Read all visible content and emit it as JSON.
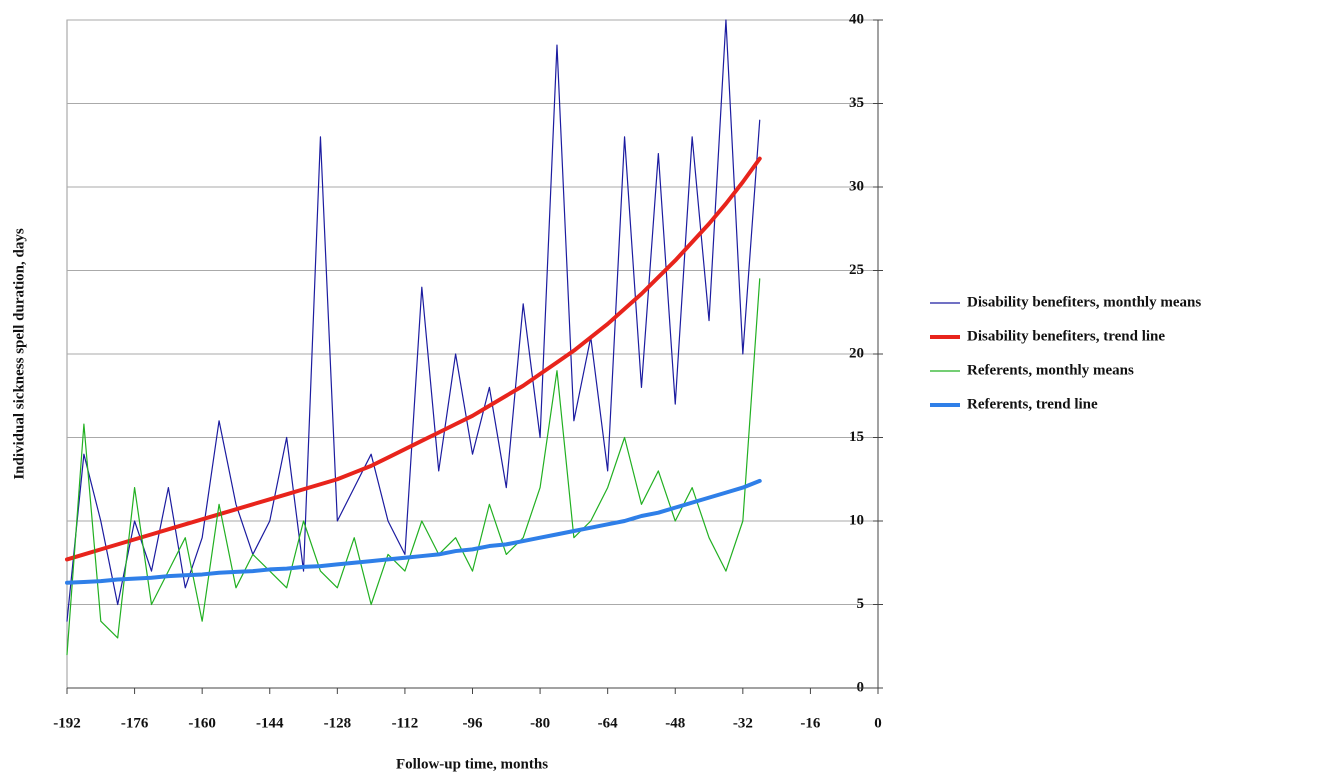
{
  "chart_data": {
    "type": "line",
    "x_label": "Follow-up time, months",
    "y_label": "Individual sickness spell duration, days",
    "x": [
      -192,
      -188,
      -184,
      -180,
      -176,
      -172,
      -168,
      -164,
      -160,
      -156,
      -152,
      -148,
      -144,
      -140,
      -136,
      -132,
      -128,
      -124,
      -120,
      -116,
      -112,
      -108,
      -104,
      -100,
      -96,
      -92,
      -88,
      -84,
      -80,
      -76,
      -72,
      -68,
      -64,
      -60,
      -56,
      -52,
      -48,
      -44,
      -40,
      -36,
      -32,
      -28
    ],
    "series": [
      {
        "name": "Disability benefiters, monthly means",
        "color": "#1c1ca0",
        "width": 1.2,
        "values": [
          4,
          14,
          10,
          5,
          10,
          7,
          12,
          6,
          9,
          16,
          11,
          8,
          10,
          15,
          7,
          33,
          10,
          12,
          14,
          10,
          8,
          24,
          13,
          20,
          14,
          18,
          12,
          23,
          15,
          38.5,
          16,
          21,
          13,
          33,
          18,
          32,
          17,
          33,
          22,
          40,
          20,
          34
        ]
      },
      {
        "name": "Disability benefiters, trend line",
        "color": "#e8241c",
        "width": 4,
        "values": [
          7.7,
          8.0,
          8.3,
          8.6,
          8.9,
          9.2,
          9.5,
          9.8,
          10.1,
          10.4,
          10.7,
          11.0,
          11.3,
          11.6,
          11.9,
          12.2,
          12.5,
          12.9,
          13.3,
          13.8,
          14.3,
          14.8,
          15.3,
          15.8,
          16.3,
          16.9,
          17.5,
          18.1,
          18.8,
          19.5,
          20.2,
          21.0,
          21.8,
          22.7,
          23.6,
          24.6,
          25.6,
          26.7,
          27.8,
          29.0,
          30.3,
          31.7
        ]
      },
      {
        "name": "Referents, monthly means",
        "color": "#22b022",
        "width": 1.2,
        "values": [
          2,
          15.8,
          4,
          3,
          12,
          5,
          7,
          9,
          4,
          11,
          6,
          8,
          7,
          6,
          10,
          7,
          6,
          9,
          5,
          8,
          7,
          10,
          8,
          9,
          7,
          11,
          8,
          9,
          12,
          19,
          9,
          10,
          12,
          15,
          11,
          13,
          10,
          12,
          9,
          7,
          10,
          24.5
        ]
      },
      {
        "name": "Referents, trend line",
        "color": "#2f7fe8",
        "width": 4,
        "values": [
          6.3,
          6.35,
          6.4,
          6.5,
          6.55,
          6.6,
          6.7,
          6.75,
          6.8,
          6.9,
          6.95,
          7.0,
          7.1,
          7.15,
          7.25,
          7.3,
          7.4,
          7.5,
          7.6,
          7.7,
          7.8,
          7.9,
          8.0,
          8.2,
          8.3,
          8.5,
          8.6,
          8.8,
          9.0,
          9.2,
          9.4,
          9.6,
          9.8,
          10.0,
          10.3,
          10.5,
          10.8,
          11.1,
          11.4,
          11.7,
          12.0,
          12.4
        ]
      }
    ],
    "xlim": [
      -192,
      0
    ],
    "xticks": [
      -192,
      -176,
      -160,
      -144,
      -128,
      -112,
      -96,
      -80,
      -64,
      -48,
      -32,
      -16,
      0
    ],
    "ylim": [
      0,
      40
    ],
    "yticks": [
      0,
      5,
      10,
      15,
      20,
      25,
      30,
      35,
      40
    ],
    "grid": true,
    "legend": "right"
  }
}
